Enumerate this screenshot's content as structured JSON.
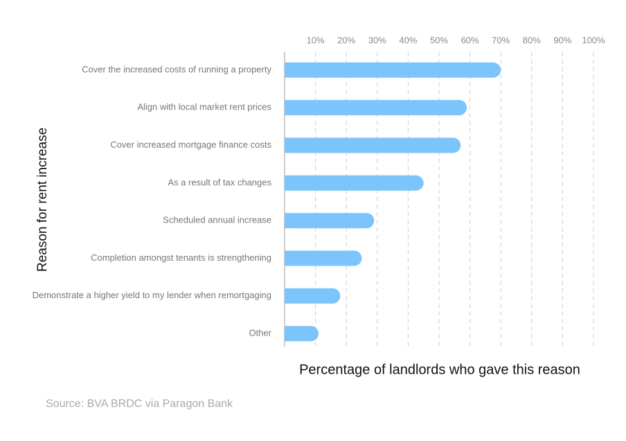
{
  "chart_data": {
    "type": "barh",
    "categories": [
      "Cover the increased costs of running a property",
      "Align with local market rent prices",
      "Cover increased mortgage finance costs",
      "As a result of tax changes",
      "Scheduled annual increase",
      "Completion amongst tenants is strengthening",
      "Demonstrate a higher yield to my lender when remortgaging",
      "Other"
    ],
    "values": [
      70,
      59,
      57,
      45,
      29,
      25,
      18,
      11
    ],
    "color": "#7cc4fc",
    "xlim": [
      0,
      100
    ],
    "xticks": [
      {
        "value": 10,
        "label": "10%"
      },
      {
        "value": 20,
        "label": "20%"
      },
      {
        "value": 30,
        "label": "30%"
      },
      {
        "value": 40,
        "label": "40%"
      },
      {
        "value": 50,
        "label": "50%"
      },
      {
        "value": 60,
        "label": "60%"
      },
      {
        "value": 70,
        "label": "70%"
      },
      {
        "value": 80,
        "label": "80%"
      },
      {
        "value": 90,
        "label": "90%"
      },
      {
        "value": 100,
        "label": "100%"
      }
    ],
    "grid": true,
    "x_label": "Percentage of landlords who gave this reason",
    "y_label": "Reason for rent increase",
    "source": "Source: BVA BRDC via Paragon Bank"
  }
}
